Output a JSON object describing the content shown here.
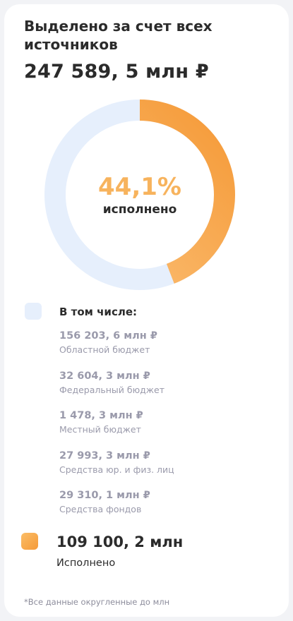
{
  "card": {
    "title": "Выделено за счет всех источников",
    "total": "247 589, 5 млн ₽"
  },
  "chart_data": {
    "type": "pie",
    "categories": [
      "Исполнено",
      "Остаток"
    ],
    "values": [
      44.1,
      55.9
    ],
    "center_value": "44,1%",
    "center_label": "исполнено",
    "colors": {
      "executed": "#f7a848",
      "remaining": "#e6effc"
    }
  },
  "breakdown": {
    "title": "В том числе:",
    "items": [
      {
        "value": "156 203, 6 млн ₽",
        "label": "Областной бюджет"
      },
      {
        "value": "32 604, 3 млн ₽",
        "label": "Федеральный бюджет"
      },
      {
        "value": "1 478, 3 млн ₽",
        "label": "Местный бюджет"
      },
      {
        "value": "27 993, 3 млн ₽",
        "label": "Средства юр. и физ. лиц"
      },
      {
        "value": "29 310, 1 млн ₽",
        "label": "Средства фондов"
      }
    ]
  },
  "executed": {
    "value": "109 100, 2 млн",
    "label": "Исполнено"
  },
  "footnote": "*Все данные округленные до млн"
}
